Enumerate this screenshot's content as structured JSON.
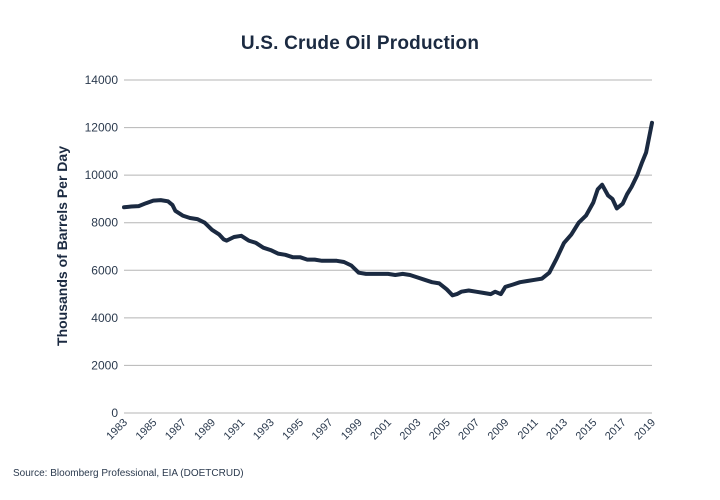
{
  "chart_data": {
    "type": "line",
    "title": "U.S. Crude Oil Production",
    "xlabel": "",
    "ylabel": "Thousands of Barrels Per Day",
    "xlim": [
      1983,
      2019
    ],
    "ylim": [
      0,
      14000
    ],
    "yticks": [
      0,
      2000,
      4000,
      6000,
      8000,
      10000,
      12000,
      14000
    ],
    "xticks": [
      "1983",
      "1985",
      "1987",
      "1989",
      "1991",
      "1993",
      "1995",
      "1997",
      "1999",
      "2001",
      "2003",
      "2005",
      "2007",
      "2009",
      "2011",
      "2013",
      "2015",
      "2017",
      "2019"
    ],
    "grid": true,
    "line_color": "#1b2a41",
    "grid_color": "#b5b5b5",
    "series": [
      {
        "name": "U.S. Crude Oil Production",
        "x": [
          1983.0,
          1983.5,
          1984.0,
          1984.5,
          1985.0,
          1985.5,
          1986.0,
          1986.3,
          1986.5,
          1987.0,
          1987.5,
          1988.0,
          1988.5,
          1989.0,
          1989.5,
          1989.8,
          1990.0,
          1990.5,
          1991.0,
          1991.5,
          1992.0,
          1992.5,
          1993.0,
          1993.5,
          1994.0,
          1994.5,
          1995.0,
          1995.5,
          1996.0,
          1996.5,
          1997.0,
          1997.5,
          1998.0,
          1998.5,
          1999.0,
          1999.5,
          2000.0,
          2000.5,
          2001.0,
          2001.5,
          2002.0,
          2002.5,
          2003.0,
          2003.5,
          2004.0,
          2004.5,
          2005.0,
          2005.4,
          2005.7,
          2006.0,
          2006.5,
          2007.0,
          2007.5,
          2008.0,
          2008.3,
          2008.7,
          2009.0,
          2009.5,
          2010.0,
          2010.5,
          2011.0,
          2011.5,
          2012.0,
          2012.5,
          2013.0,
          2013.5,
          2014.0,
          2014.5,
          2015.0,
          2015.3,
          2015.6,
          2016.0,
          2016.3,
          2016.6,
          2017.0,
          2017.3,
          2017.6,
          2018.0,
          2018.3,
          2018.6,
          2019.0
        ],
        "values": [
          8650,
          8680,
          8700,
          8820,
          8930,
          8950,
          8900,
          8750,
          8500,
          8300,
          8200,
          8150,
          8000,
          7700,
          7500,
          7300,
          7250,
          7400,
          7450,
          7250,
          7150,
          6950,
          6850,
          6700,
          6650,
          6550,
          6550,
          6450,
          6450,
          6400,
          6400,
          6400,
          6350,
          6200,
          5900,
          5850,
          5850,
          5850,
          5850,
          5800,
          5850,
          5800,
          5700,
          5600,
          5500,
          5450,
          5200,
          4950,
          5000,
          5100,
          5150,
          5100,
          5050,
          5000,
          5100,
          5000,
          5300,
          5400,
          5500,
          5550,
          5600,
          5650,
          5900,
          6500,
          7150,
          7500,
          8000,
          8300,
          8850,
          9400,
          9600,
          9150,
          9000,
          8600,
          8800,
          9200,
          9500,
          10000,
          10500,
          10950,
          12200
        ]
      }
    ]
  },
  "page": {
    "source": "Source: Bloomberg Professional, EIA (DOETCRUD)"
  }
}
